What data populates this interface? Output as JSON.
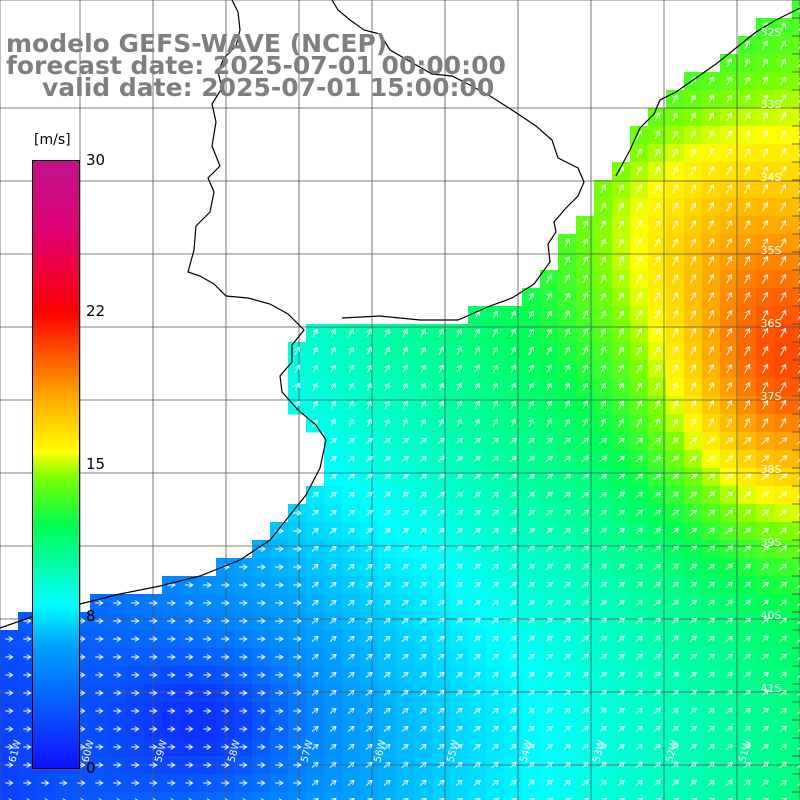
{
  "title": {
    "model": "modelo GEFS-WAVE (NCEP)",
    "forecast": "forecast date: 2025-07-01 00:00:00",
    "valid": "valid date: 2025-07-01 15:00:00"
  },
  "colorbar": {
    "unit": "[m/s]",
    "ticks": [
      "30",
      "22",
      "15",
      "8",
      "0"
    ],
    "range": [
      0,
      30
    ],
    "colors": [
      "#1010ff",
      "#00a0ff",
      "#00ffff",
      "#00ff50",
      "#80ff00",
      "#ffff00",
      "#ffa000",
      "#ff0000",
      "#c0148c"
    ]
  },
  "axes": {
    "lat_labels": [
      "32S",
      "33S",
      "34S",
      "35S",
      "36S",
      "37S",
      "38S",
      "39S",
      "40S",
      "41S"
    ],
    "lon_labels": [
      "61W",
      "60W",
      "59W",
      "58W",
      "57W",
      "56W",
      "55W",
      "54W",
      "53W",
      "52W",
      "51W"
    ]
  },
  "style": {
    "land_color": "#ffffff",
    "grid_color": "#555555",
    "coast_color": "#000000",
    "arrow_color": "#ffffff"
  }
}
